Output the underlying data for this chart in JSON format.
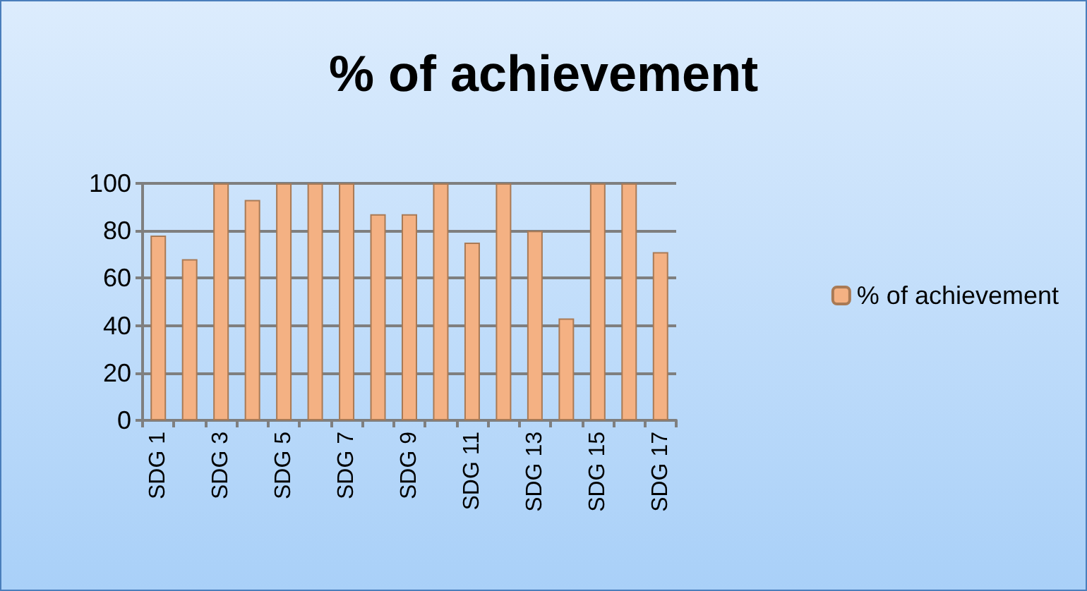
{
  "chart_data": {
    "type": "bar",
    "title": "% of achievement",
    "categories": [
      "SDG 1",
      null,
      "SDG 3",
      null,
      "SDG 5",
      null,
      "SDG 7",
      null,
      "SDG 9",
      null,
      "SDG 11",
      null,
      "SDG 13",
      null,
      "SDG 15",
      null,
      "SDG 17"
    ],
    "series": [
      {
        "name": "% of achievement",
        "color": "#f4b183",
        "values": [
          78,
          68,
          100,
          93,
          100,
          100,
          100,
          87,
          87,
          100,
          75,
          100,
          80,
          43,
          100,
          100,
          71
        ]
      }
    ],
    "ylim": [
      0,
      100
    ],
    "yticks": [
      0,
      20,
      40,
      60,
      80,
      100
    ],
    "grid": "y",
    "legend": "right"
  }
}
